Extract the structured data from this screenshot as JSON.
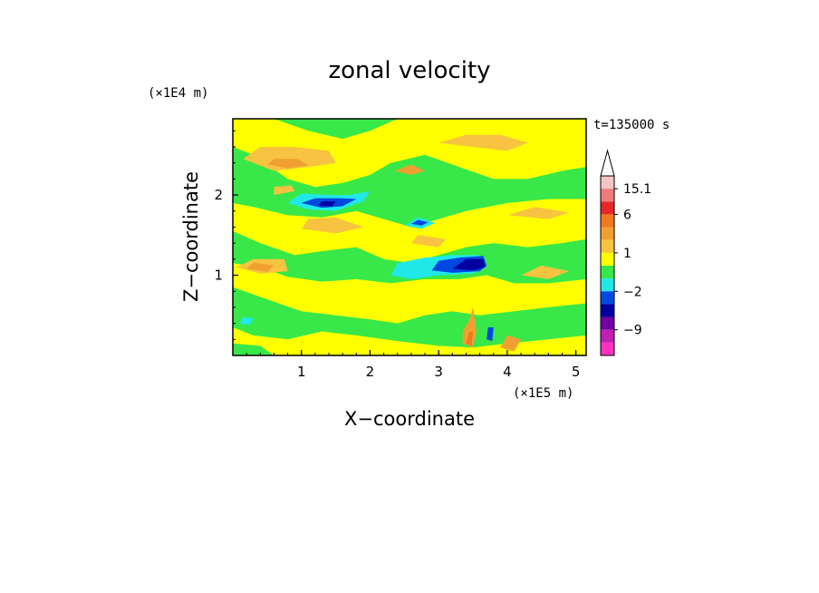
{
  "chart_data": {
    "type": "heatmap",
    "title": "zonal velocity",
    "xlabel": "X−coordinate",
    "ylabel": "Z−coordinate",
    "x_unit_label": "(×1E5 m)",
    "y_unit_label": "(×1E4 m)",
    "time_label": "t=135000 s",
    "xlim": [
      0,
      5.15
    ],
    "ylim": [
      0,
      2.95
    ],
    "x_ticks": [
      {
        "v": 1,
        "label": "1"
      },
      {
        "v": 2,
        "label": "2"
      },
      {
        "v": 3,
        "label": "3"
      },
      {
        "v": 4,
        "label": "4"
      },
      {
        "v": 5,
        "label": "5"
      }
    ],
    "y_ticks": [
      {
        "v": 1,
        "label": "1"
      },
      {
        "v": 2,
        "label": "2"
      }
    ],
    "colorbar": {
      "colors_top_to_bottom": [
        "#f4c4c4",
        "#f07a7a",
        "#e82828",
        "#f07820",
        "#f0a030",
        "#f7c340",
        "#ffff00",
        "#38e848",
        "#20e8e8",
        "#0048e0",
        "#0000a0",
        "#7000a0",
        "#c020b0",
        "#ff30c0"
      ],
      "labels": [
        {
          "text": "15.1",
          "band": 0
        },
        {
          "text": "6",
          "band": 2
        },
        {
          "text": "1",
          "band": 5
        },
        {
          "text": "−2",
          "band": 8
        },
        {
          "text": "−9",
          "band": 11
        }
      ]
    },
    "levels": [
      {
        "name": "+",
        "color": "#f7c340"
      },
      {
        "name": "++",
        "color": "#f0a030"
      },
      {
        "name": "+++",
        "color": "#f07820"
      },
      {
        "name": "-",
        "color": "#38e848"
      },
      {
        "name": "--",
        "color": "#20e8e8"
      },
      {
        "name": "---",
        "color": "#0048e0"
      },
      {
        "name": "----",
        "color": "#0000a0"
      }
    ],
    "background_color": "#ffff00",
    "regions": [
      {
        "c": "#38e848",
        "p": [
          [
            0,
            2.95
          ],
          [
            0.6,
            2.95
          ],
          [
            1.1,
            2.8
          ],
          [
            1.6,
            2.7
          ],
          [
            2.0,
            2.8
          ],
          [
            2.4,
            2.95
          ],
          [
            0,
            2.95
          ]
        ]
      },
      {
        "c": "#38e848",
        "p": [
          [
            0,
            2.6
          ],
          [
            0.3,
            2.5
          ],
          [
            0.8,
            2.2
          ],
          [
            1.2,
            2.1
          ],
          [
            1.6,
            2.15
          ],
          [
            2.0,
            2.25
          ],
          [
            2.3,
            2.4
          ],
          [
            2.8,
            2.5
          ],
          [
            3.3,
            2.35
          ],
          [
            3.8,
            2.2
          ],
          [
            4.3,
            2.2
          ],
          [
            4.8,
            2.3
          ],
          [
            5.15,
            2.35
          ],
          [
            5.15,
            1.95
          ],
          [
            4.6,
            1.95
          ],
          [
            4.0,
            1.9
          ],
          [
            3.4,
            1.8
          ],
          [
            3.0,
            1.7
          ],
          [
            2.6,
            1.6
          ],
          [
            2.2,
            1.7
          ],
          [
            1.8,
            1.8
          ],
          [
            1.3,
            1.72
          ],
          [
            0.8,
            1.75
          ],
          [
            0.3,
            1.85
          ],
          [
            0,
            1.9
          ]
        ]
      },
      {
        "c": "#38e848",
        "p": [
          [
            0,
            1.55
          ],
          [
            0.4,
            1.4
          ],
          [
            0.9,
            1.25
          ],
          [
            1.3,
            1.3
          ],
          [
            1.8,
            1.35
          ],
          [
            2.2,
            1.2
          ],
          [
            2.6,
            1.15
          ],
          [
            3.0,
            1.25
          ],
          [
            3.4,
            1.35
          ],
          [
            3.8,
            1.4
          ],
          [
            4.3,
            1.35
          ],
          [
            4.8,
            1.4
          ],
          [
            5.15,
            1.45
          ],
          [
            5.15,
            0.95
          ],
          [
            4.6,
            0.9
          ],
          [
            4.1,
            0.9
          ],
          [
            3.7,
            1.0
          ],
          [
            3.3,
            0.95
          ],
          [
            2.8,
            0.95
          ],
          [
            2.3,
            0.9
          ],
          [
            1.8,
            0.95
          ],
          [
            1.3,
            0.92
          ],
          [
            0.8,
            0.98
          ],
          [
            0.4,
            1.1
          ],
          [
            0,
            1.15
          ]
        ]
      },
      {
        "c": "#38e848",
        "p": [
          [
            0,
            0.85
          ],
          [
            0.5,
            0.7
          ],
          [
            1.0,
            0.55
          ],
          [
            1.5,
            0.5
          ],
          [
            2.0,
            0.45
          ],
          [
            2.4,
            0.4
          ],
          [
            2.8,
            0.5
          ],
          [
            3.2,
            0.55
          ],
          [
            3.6,
            0.5
          ],
          [
            4.1,
            0.55
          ],
          [
            4.6,
            0.6
          ],
          [
            5.15,
            0.65
          ],
          [
            5.15,
            0.25
          ],
          [
            4.6,
            0.2
          ],
          [
            4.0,
            0.15
          ],
          [
            3.5,
            0.1
          ],
          [
            3.0,
            0.12
          ],
          [
            2.4,
            0.18
          ],
          [
            1.8,
            0.25
          ],
          [
            1.3,
            0.3
          ],
          [
            0.8,
            0.2
          ],
          [
            0.3,
            0.25
          ],
          [
            0,
            0.35
          ]
        ]
      },
      {
        "c": "#38e848",
        "p": [
          [
            0,
            0
          ],
          [
            0.6,
            0
          ],
          [
            0.4,
            0.12
          ],
          [
            0,
            0.15
          ]
        ]
      },
      {
        "c": "#f7c340",
        "p": [
          [
            0.15,
            2.45
          ],
          [
            0.6,
            2.3
          ],
          [
            1.1,
            2.35
          ],
          [
            1.5,
            2.4
          ],
          [
            1.4,
            2.55
          ],
          [
            0.9,
            2.6
          ],
          [
            0.4,
            2.6
          ]
        ]
      },
      {
        "c": "#f0a030",
        "p": [
          [
            0.5,
            2.38
          ],
          [
            0.8,
            2.33
          ],
          [
            1.1,
            2.37
          ],
          [
            0.95,
            2.45
          ],
          [
            0.6,
            2.45
          ]
        ]
      },
      {
        "c": "#f7c340",
        "p": [
          [
            3.0,
            2.65
          ],
          [
            3.5,
            2.6
          ],
          [
            4.0,
            2.55
          ],
          [
            4.3,
            2.65
          ],
          [
            3.9,
            2.75
          ],
          [
            3.4,
            2.75
          ]
        ]
      },
      {
        "c": "#f7c340",
        "p": [
          [
            0.05,
            1.1
          ],
          [
            0.4,
            1.02
          ],
          [
            0.8,
            1.05
          ],
          [
            0.75,
            1.2
          ],
          [
            0.3,
            1.2
          ]
        ]
      },
      {
        "c": "#f0a030",
        "p": [
          [
            0.2,
            1.08
          ],
          [
            0.5,
            1.04
          ],
          [
            0.6,
            1.12
          ],
          [
            0.3,
            1.16
          ]
        ]
      },
      {
        "c": "#f7c340",
        "p": [
          [
            1.0,
            1.58
          ],
          [
            1.5,
            1.52
          ],
          [
            1.9,
            1.6
          ],
          [
            1.5,
            1.72
          ],
          [
            1.1,
            1.7
          ]
        ]
      },
      {
        "c": "#f7c340",
        "p": [
          [
            2.6,
            1.4
          ],
          [
            3.0,
            1.35
          ],
          [
            3.1,
            1.45
          ],
          [
            2.7,
            1.5
          ]
        ]
      },
      {
        "c": "#f7c340",
        "p": [
          [
            4.0,
            1.75
          ],
          [
            4.6,
            1.7
          ],
          [
            4.9,
            1.78
          ],
          [
            4.4,
            1.85
          ]
        ]
      },
      {
        "c": "#f7c340",
        "p": [
          [
            4.2,
            1.0
          ],
          [
            4.6,
            0.95
          ],
          [
            4.9,
            1.05
          ],
          [
            4.5,
            1.12
          ]
        ]
      },
      {
        "c": "#20e8e8",
        "p": [
          [
            0.8,
            1.9
          ],
          [
            1.1,
            1.82
          ],
          [
            1.5,
            1.8
          ],
          [
            1.9,
            1.92
          ],
          [
            2.0,
            2.05
          ],
          [
            1.7,
            2.0
          ],
          [
            1.4,
            2.0
          ],
          [
            1.0,
            2.02
          ]
        ]
      },
      {
        "c": "#0048e0",
        "p": [
          [
            1.0,
            1.9
          ],
          [
            1.3,
            1.84
          ],
          [
            1.6,
            1.86
          ],
          [
            1.8,
            1.95
          ],
          [
            1.55,
            1.96
          ],
          [
            1.2,
            1.96
          ]
        ]
      },
      {
        "c": "#0000a0",
        "p": [
          [
            1.25,
            1.87
          ],
          [
            1.45,
            1.86
          ],
          [
            1.5,
            1.92
          ],
          [
            1.3,
            1.92
          ]
        ]
      },
      {
        "c": "#20e8e8",
        "p": [
          [
            2.5,
            1.62
          ],
          [
            2.75,
            1.58
          ],
          [
            2.95,
            1.65
          ],
          [
            2.7,
            1.72
          ]
        ]
      },
      {
        "c": "#0048e0",
        "p": [
          [
            2.6,
            1.64
          ],
          [
            2.75,
            1.62
          ],
          [
            2.85,
            1.66
          ],
          [
            2.7,
            1.69
          ]
        ]
      },
      {
        "c": "#20e8e8",
        "p": [
          [
            2.3,
            1.0
          ],
          [
            2.6,
            0.95
          ],
          [
            3.0,
            1.0
          ],
          [
            3.5,
            1.02
          ],
          [
            3.7,
            1.1
          ],
          [
            3.6,
            1.25
          ],
          [
            3.2,
            1.25
          ],
          [
            2.8,
            1.22
          ],
          [
            2.4,
            1.15
          ]
        ]
      },
      {
        "c": "#0048e0",
        "p": [
          [
            2.9,
            1.06
          ],
          [
            3.2,
            1.03
          ],
          [
            3.6,
            1.05
          ],
          [
            3.7,
            1.12
          ],
          [
            3.65,
            1.24
          ],
          [
            3.3,
            1.22
          ],
          [
            3.0,
            1.18
          ]
        ]
      },
      {
        "c": "#0000a0",
        "p": [
          [
            3.2,
            1.08
          ],
          [
            3.5,
            1.06
          ],
          [
            3.68,
            1.1
          ],
          [
            3.65,
            1.2
          ],
          [
            3.4,
            1.2
          ]
        ]
      },
      {
        "c": "#f0a030",
        "p": [
          [
            3.35,
            0.15
          ],
          [
            3.5,
            0.1
          ],
          [
            3.55,
            0.3
          ],
          [
            3.5,
            0.6
          ],
          [
            3.45,
            0.45
          ],
          [
            3.35,
            0.3
          ]
        ]
      },
      {
        "c": "#f07820",
        "p": [
          [
            3.4,
            0.15
          ],
          [
            3.48,
            0.12
          ],
          [
            3.5,
            0.3
          ],
          [
            3.45,
            0.3
          ]
        ]
      },
      {
        "c": "#f0a030",
        "p": [
          [
            3.9,
            0.1
          ],
          [
            4.1,
            0.05
          ],
          [
            4.2,
            0.2
          ],
          [
            4.0,
            0.25
          ]
        ]
      },
      {
        "c": "#0048e0",
        "p": [
          [
            3.7,
            0.2
          ],
          [
            3.78,
            0.18
          ],
          [
            3.8,
            0.35
          ],
          [
            3.72,
            0.35
          ]
        ]
      },
      {
        "c": "#20e8e8",
        "p": [
          [
            0.1,
            0.4
          ],
          [
            0.25,
            0.38
          ],
          [
            0.3,
            0.46
          ],
          [
            0.15,
            0.48
          ]
        ]
      },
      {
        "c": "#f7c340",
        "p": [
          [
            0.6,
            2.0
          ],
          [
            0.9,
            2.05
          ],
          [
            0.85,
            2.12
          ],
          [
            0.6,
            2.1
          ]
        ]
      },
      {
        "c": "#f0a030",
        "p": [
          [
            2.35,
            2.3
          ],
          [
            2.6,
            2.25
          ],
          [
            2.8,
            2.3
          ],
          [
            2.6,
            2.38
          ]
        ]
      }
    ]
  }
}
